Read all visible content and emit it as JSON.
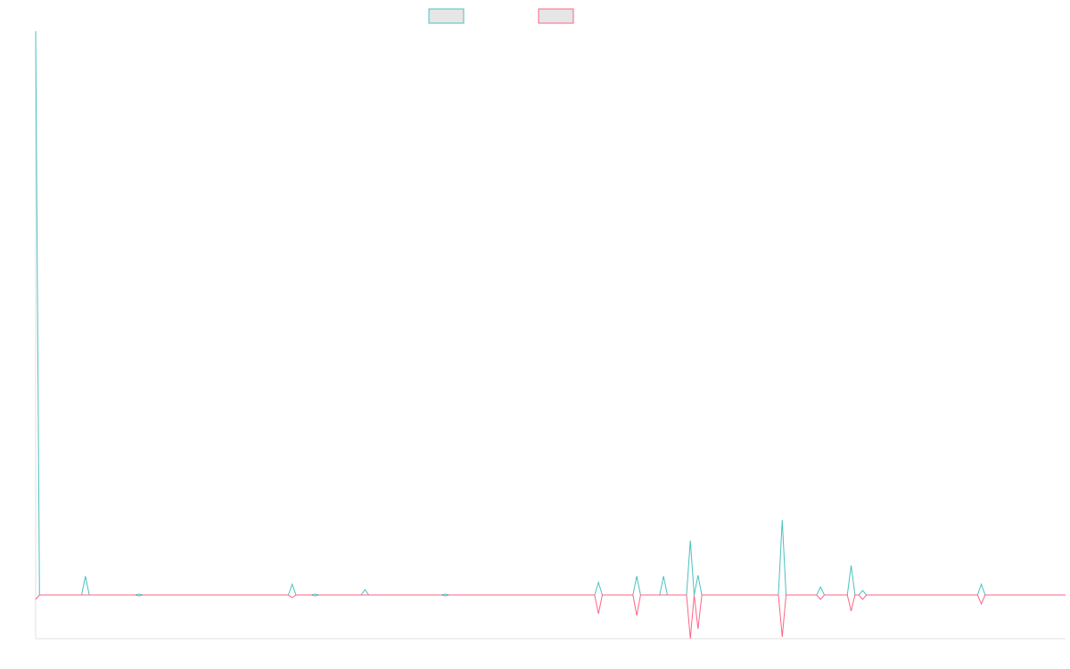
{
  "chart_data": {
    "type": "line",
    "x": [
      0,
      1,
      12,
      13,
      14,
      26,
      27,
      28,
      66,
      67,
      68,
      72,
      73,
      74,
      85,
      86,
      87,
      106,
      107,
      108,
      146,
      147,
      148,
      156,
      157,
      158,
      163,
      164,
      165,
      170,
      171,
      172,
      173,
      174,
      194,
      195,
      196,
      204,
      205,
      206,
      212,
      213,
      214,
      215,
      216,
      217,
      246,
      247,
      248,
      269
    ],
    "series": [
      {
        "color": "#4bc0c0",
        "values": [
          632,
          0,
          0,
          21,
          0,
          0,
          1,
          0,
          0,
          12,
          0,
          0,
          1,
          0,
          0,
          6,
          0,
          0,
          1,
          0,
          0,
          14,
          0,
          0,
          21,
          0,
          0,
          21,
          0,
          0,
          61,
          0,
          22,
          0,
          0,
          84,
          0,
          0,
          9,
          0,
          0,
          33,
          0,
          0,
          5,
          0,
          0,
          12,
          0,
          0
        ]
      },
      {
        "color": "#ff6384",
        "values": [
          -5,
          0,
          0,
          0,
          0,
          0,
          -1,
          0,
          0,
          -3,
          0,
          0,
          -1,
          0,
          0,
          0,
          0,
          0,
          -1,
          0,
          0,
          -21,
          0,
          0,
          -23,
          0,
          0,
          0,
          0,
          0,
          -49,
          0,
          -38,
          0,
          0,
          -47,
          0,
          0,
          -5,
          0,
          0,
          -18,
          0,
          0,
          -5,
          0,
          0,
          -10,
          0,
          0
        ]
      }
    ],
    "xlim": [
      0,
      269
    ],
    "ylim": [
      -49,
      632
    ]
  }
}
